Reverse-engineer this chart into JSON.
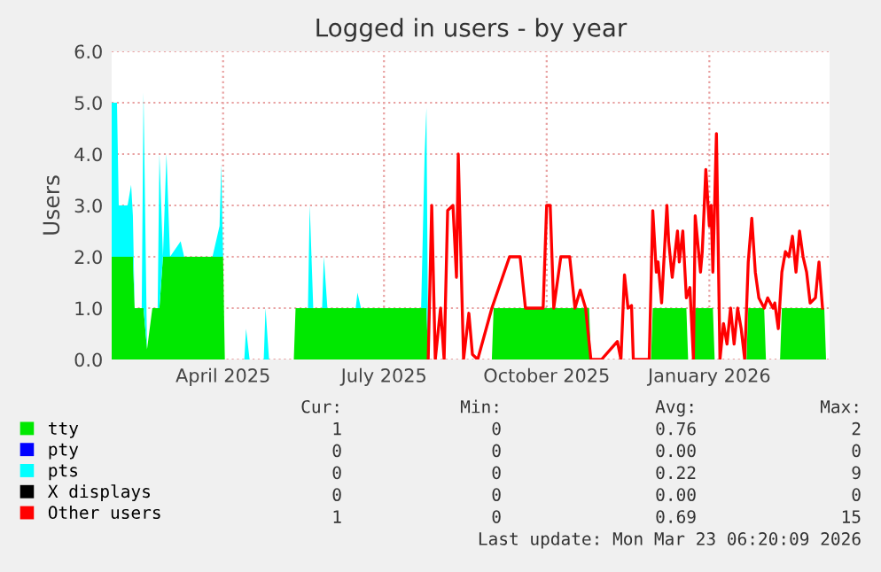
{
  "chart_data": {
    "type": "area",
    "stacked": true,
    "title": "Logged in users - by year",
    "ylabel": "Users",
    "x": [
      "2025-01-28",
      "2025-01-31",
      "2025-02-01",
      "2025-02-06",
      "2025-02-08",
      "2025-02-09",
      "2025-02-10",
      "2025-02-14",
      "2025-02-15",
      "2025-02-17",
      "2025-02-20",
      "2025-02-23",
      "2025-02-24",
      "2025-02-26",
      "2025-02-28",
      "2025-03-02",
      "2025-03-08",
      "2025-03-10",
      "2025-03-26",
      "2025-03-30",
      "2025-03-31",
      "2025-04-01",
      "2025-04-02",
      "2025-04-13",
      "2025-04-14",
      "2025-04-16",
      "2025-04-24",
      "2025-04-25",
      "2025-04-27",
      "2025-05-11",
      "2025-05-12",
      "2025-05-19",
      "2025-05-20",
      "2025-05-22",
      "2025-05-27",
      "2025-05-28",
      "2025-05-30",
      "2025-06-15",
      "2025-06-16",
      "2025-06-18",
      "2025-07-22",
      "2025-07-24",
      "2025-07-25",
      "2025-07-26",
      "2025-08-31",
      "2025-09-01",
      "2025-10-25",
      "2025-10-26",
      "2025-11-29",
      "2025-11-30",
      "2025-12-19",
      "2025-12-20",
      "2025-12-23",
      "2025-12-24",
      "2026-01-03",
      "2026-01-04",
      "2026-01-22",
      "2026-01-23",
      "2026-02-01",
      "2026-02-02",
      "2026-02-10",
      "2026-02-11",
      "2026-03-07",
      "2026-03-08"
    ],
    "series": [
      {
        "name": "tty",
        "color": "#00e800",
        "values": [
          2,
          2,
          2,
          2,
          2,
          2,
          1,
          1,
          1,
          0.2,
          1,
          1,
          1,
          2,
          2,
          2,
          2,
          2,
          2,
          2,
          2,
          2,
          0,
          0,
          0,
          0,
          0,
          0,
          0,
          0,
          1,
          1,
          1,
          1,
          1,
          1,
          1,
          1,
          1,
          1,
          1,
          1,
          1,
          0,
          0,
          1,
          1,
          0,
          0,
          1,
          1,
          0,
          0,
          1,
          1,
          0,
          0,
          1,
          1,
          0,
          0,
          1,
          1,
          0
        ]
      },
      {
        "name": "pty",
        "color": "#0000ff",
        "values": [
          null,
          null,
          null,
          null,
          null,
          null,
          null,
          null,
          null,
          null,
          null,
          null,
          null,
          null,
          null,
          null,
          null,
          null,
          null,
          null,
          null,
          null,
          null,
          null,
          null,
          null,
          null,
          null,
          null,
          null,
          null,
          null,
          null,
          null,
          null,
          null,
          null,
          null,
          null,
          null,
          null,
          null,
          null,
          null,
          null,
          null,
          null,
          null,
          null,
          null,
          null,
          null,
          null,
          null,
          null,
          null,
          null,
          null,
          null,
          null,
          null,
          null,
          null,
          null
        ]
      },
      {
        "name": "pts",
        "color": "#00ffff",
        "values": [
          3,
          3,
          1,
          1,
          1.4,
          0.8,
          0,
          0,
          4.2,
          0,
          0,
          0,
          3,
          0,
          2,
          0,
          0.3,
          0,
          0,
          0.6,
          1.8,
          0,
          0,
          0,
          0.6,
          0,
          0,
          1,
          0,
          0,
          0,
          0,
          2,
          0,
          0,
          1,
          0,
          0,
          0.3,
          0,
          0,
          3,
          3.9,
          0,
          0,
          0,
          0,
          0,
          0,
          0,
          0,
          0,
          0,
          0,
          0,
          0,
          0,
          0,
          0,
          0,
          0,
          0,
          0,
          0
        ]
      },
      {
        "name": "X displays",
        "color": "#000000",
        "values": [
          null,
          null,
          null,
          null,
          null,
          null,
          null,
          null,
          null,
          null,
          null,
          null,
          null,
          null,
          null,
          null,
          null,
          null,
          null,
          null,
          null,
          null,
          null,
          null,
          null,
          null,
          null,
          null,
          null,
          null,
          null,
          null,
          null,
          null,
          null,
          null,
          null,
          null,
          null,
          null,
          null,
          null,
          null,
          null,
          null,
          null,
          null,
          null,
          null,
          null,
          null,
          null,
          null,
          null,
          null,
          null,
          null,
          null,
          null,
          null,
          null,
          null,
          null,
          null
        ]
      },
      {
        "name": "Other users",
        "type": "line",
        "color": "#ff0000",
        "x": [
          "2025-07-26",
          "2025-07-28",
          "2025-07-30",
          "2025-08-02",
          "2025-08-04",
          "2025-08-06",
          "2025-08-09",
          "2025-08-11",
          "2025-08-12",
          "2025-08-15",
          "2025-08-18",
          "2025-08-20",
          "2025-08-23",
          "2025-08-31",
          "2025-09-10",
          "2025-09-16",
          "2025-09-19",
          "2025-09-29",
          "2025-10-01",
          "2025-10-03",
          "2025-10-05",
          "2025-10-09",
          "2025-10-14",
          "2025-10-17",
          "2025-10-20",
          "2025-10-23",
          "2025-10-26",
          "2025-11-01",
          "2025-11-10",
          "2025-11-12",
          "2025-11-14",
          "2025-11-16",
          "2025-11-18",
          "2025-11-19",
          "2025-11-28",
          "2025-11-30",
          "2025-12-02",
          "2025-12-03",
          "2025-12-05",
          "2025-12-08",
          "2025-12-09",
          "2025-12-11",
          "2025-12-14",
          "2025-12-15",
          "2025-12-17",
          "2025-12-19",
          "2025-12-21",
          "2025-12-23",
          "2025-12-24",
          "2025-12-27",
          "2025-12-28",
          "2025-12-30",
          "2026-01-01",
          "2026-01-02",
          "2026-01-03",
          "2026-01-05",
          "2026-01-07",
          "2026-01-09",
          "2026-01-11",
          "2026-01-13",
          "2026-01-15",
          "2026-01-17",
          "2026-01-19",
          "2026-01-21",
          "2026-01-23",
          "2026-01-25",
          "2026-01-27",
          "2026-01-29",
          "2026-02-01",
          "2026-02-03",
          "2026-02-06",
          "2026-02-07",
          "2026-02-09",
          "2026-02-11",
          "2026-02-13",
          "2026-02-15",
          "2026-02-17",
          "2026-02-19",
          "2026-02-21",
          "2026-02-23",
          "2026-02-25",
          "2026-02-27",
          "2026-03-02",
          "2026-03-04",
          "2026-03-06"
        ],
        "values": [
          0,
          3.0,
          0,
          1.0,
          0,
          2.9,
          3.0,
          1.6,
          4.0,
          0,
          0.9,
          0.1,
          0,
          1.0,
          2.0,
          2.0,
          1.0,
          1.0,
          3.0,
          3.0,
          1.0,
          2.0,
          2.0,
          1.0,
          1.35,
          1.0,
          0,
          0,
          0.35,
          0,
          1.65,
          1.0,
          1.05,
          0,
          0,
          2.9,
          1.7,
          1.9,
          1.1,
          3.0,
          2.3,
          1.6,
          2.5,
          1.9,
          2.5,
          1.2,
          1.4,
          0,
          2.8,
          1.7,
          2.1,
          3.7,
          2.6,
          3.0,
          1.7,
          4.4,
          0,
          0.7,
          0.3,
          1.0,
          0.3,
          1.0,
          0.6,
          0,
          1.9,
          2.75,
          1.7,
          1.2,
          1.0,
          1.2,
          1.0,
          1.1,
          0.6,
          1.7,
          2.1,
          2.0,
          2.4,
          1.7,
          2.5,
          2.0,
          1.7,
          1.1,
          1.2,
          1.9,
          1.0
        ]
      }
    ],
    "xlim": [
      "2025-01-28",
      "2026-03-10"
    ],
    "xticks": [
      {
        "value": "2025-04-01",
        "label": "April 2025"
      },
      {
        "value": "2025-07-01",
        "label": "July 2025"
      },
      {
        "value": "2025-10-01",
        "label": "October 2025"
      },
      {
        "value": "2026-01-01",
        "label": "January 2026"
      }
    ],
    "ylim": [
      0,
      6
    ],
    "yticks": [
      {
        "value": 0,
        "label": "0.0"
      },
      {
        "value": 1,
        "label": "1.0"
      },
      {
        "value": 2,
        "label": "2.0"
      },
      {
        "value": 3,
        "label": "3.0"
      },
      {
        "value": 4,
        "label": "4.0"
      },
      {
        "value": 5,
        "label": "5.0"
      },
      {
        "value": 6,
        "label": "6.0"
      }
    ],
    "grid": true,
    "legend": "bottom",
    "annotations": [
      "Cur:",
      "Min:",
      "Avg:",
      "Max:",
      "1",
      "0",
      "0.76",
      "2",
      "0",
      "0",
      "0.00",
      "0",
      "0",
      "0",
      "0.22",
      "9",
      "0",
      "0",
      "0.00",
      "0",
      "1",
      "0",
      "0.69",
      "15",
      "Last update: Mon Mar 23 06:20:09 2026"
    ]
  }
}
